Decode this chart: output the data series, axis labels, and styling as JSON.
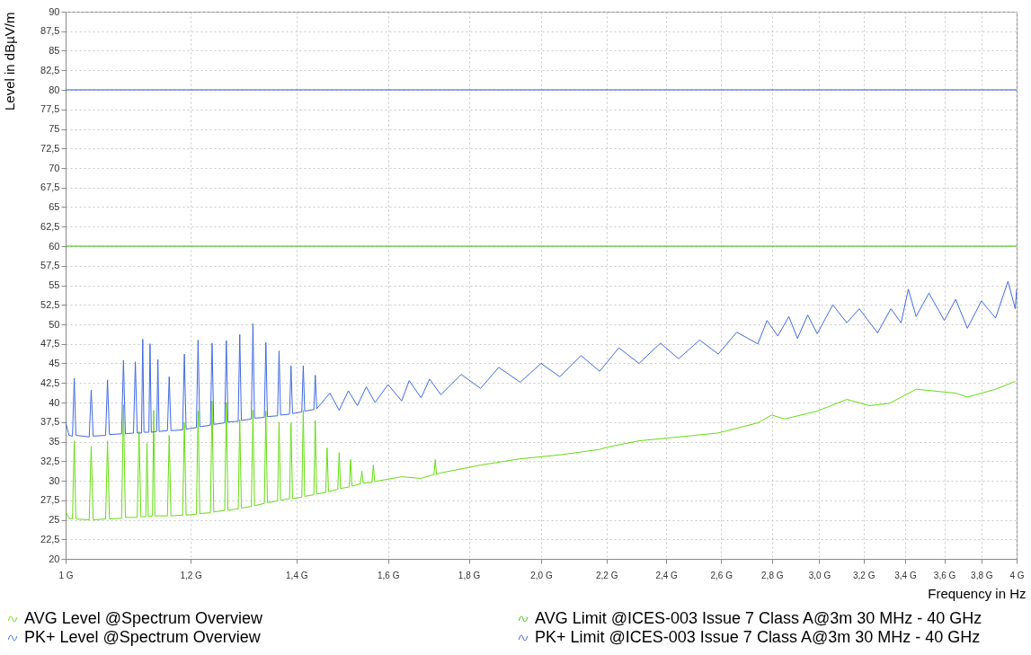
{
  "chart_data": {
    "type": "line",
    "xlabel": "Frequency in Hz",
    "ylabel": "Level in dBµV/m",
    "log": "x",
    "grid": true,
    "legend": "bottom",
    "line_style": "solid",
    "xlim": [
      1,
      4
    ],
    "xticks": [
      {
        "value": 1,
        "label": "1 G"
      },
      {
        "value": 1.2,
        "label": "1,2 G"
      },
      {
        "value": 1.4,
        "label": "1,4 G"
      },
      {
        "value": 1.6,
        "label": "1,6 G"
      },
      {
        "value": 1.8,
        "label": "1,8 G"
      },
      {
        "value": 2.0,
        "label": "2,0 G"
      },
      {
        "value": 2.2,
        "label": "2,2 G"
      },
      {
        "value": 2.4,
        "label": "2,4 G"
      },
      {
        "value": 2.6,
        "label": "2,6 G"
      },
      {
        "value": 2.8,
        "label": "2,8 G"
      },
      {
        "value": 3.0,
        "label": "3,0 G"
      },
      {
        "value": 3.2,
        "label": "3,2 G"
      },
      {
        "value": 3.4,
        "label": "3,4 G"
      },
      {
        "value": 3.6,
        "label": "3,6 G"
      },
      {
        "value": 3.8,
        "label": "3,8 G"
      },
      {
        "value": 4,
        "label": "4 G"
      }
    ],
    "ylim": [
      20,
      90
    ],
    "yticks": [
      20,
      {
        "value": 22.5,
        "label": "22,5"
      },
      25,
      {
        "value": 27.5,
        "label": "27,5"
      },
      30,
      {
        "value": 32.5,
        "label": "32,5"
      },
      35,
      {
        "value": 37.5,
        "label": "37,5"
      },
      40,
      {
        "value": 42.5,
        "label": "42,5"
      },
      45,
      {
        "value": 47.5,
        "label": "47,5"
      },
      50,
      {
        "value": 52.5,
        "label": "52,5"
      },
      55,
      {
        "value": 57.5,
        "label": "57,5"
      },
      60,
      {
        "value": 62.5,
        "label": "62,5"
      },
      65,
      {
        "value": 67.5,
        "label": "67,5"
      },
      70,
      {
        "value": 72.5,
        "label": "72,5"
      },
      75,
      {
        "value": 77.5,
        "label": "77,5"
      },
      80,
      {
        "value": 82.5,
        "label": "82,5"
      },
      85,
      {
        "value": 87.5,
        "label": "87,5"
      },
      90
    ],
    "series": [
      {
        "name": "AVG Level @Spectrum Overview",
        "color": "#66dd11",
        "x": [
          1.0,
          1.005,
          1.01,
          1.0127,
          1.015,
          1.035,
          1.038,
          1.041,
          1.06,
          1.063,
          1.066,
          1.085,
          1.088,
          1.091,
          1.11,
          1.113,
          1.116,
          1.124,
          1.126,
          1.128,
          1.135,
          1.137,
          1.139,
          1.16,
          1.163,
          1.166,
          1.186,
          1.189,
          1.192,
          1.21,
          1.213,
          1.216,
          1.235,
          1.238,
          1.241,
          1.261,
          1.264,
          1.267,
          1.286,
          1.289,
          1.292,
          1.311,
          1.314,
          1.317,
          1.336,
          1.339,
          1.342,
          1.362,
          1.365,
          1.368,
          1.386,
          1.389,
          1.392,
          1.411,
          1.414,
          1.417,
          1.436,
          1.439,
          1.442,
          1.461,
          1.464,
          1.467,
          1.487,
          1.49,
          1.493,
          1.512,
          1.515,
          1.518,
          1.537,
          1.54,
          1.543,
          1.563,
          1.566,
          1.569,
          1.632,
          1.679,
          1.711,
          1.714,
          1.717,
          1.728,
          1.831,
          1.94,
          2.055,
          2.178,
          2.203,
          2.307,
          2.444,
          2.589,
          2.743,
          2.799,
          2.853,
          2.991,
          3.123,
          3.227,
          3.324,
          3.455,
          3.66,
          3.723,
          3.879,
          3.992
        ],
        "values": [
          26.0,
          25.2,
          25.1,
          35.1,
          25.1,
          25.0,
          34.4,
          25.0,
          25.1,
          35.1,
          25.1,
          25.2,
          39.7,
          25.3,
          25.3,
          36.3,
          25.4,
          25.4,
          34.8,
          25.4,
          25.5,
          39.0,
          25.5,
          25.5,
          35.8,
          25.5,
          25.6,
          37.4,
          25.6,
          25.7,
          38.9,
          25.8,
          25.9,
          40.2,
          26.0,
          26.2,
          40.0,
          26.2,
          26.4,
          37.8,
          26.5,
          26.7,
          39.0,
          26.8,
          27.1,
          38.9,
          27.2,
          27.4,
          37.5,
          27.5,
          27.7,
          37.4,
          27.7,
          27.9,
          39.0,
          28.0,
          28.2,
          37.7,
          28.3,
          28.5,
          34.2,
          28.6,
          28.9,
          33.6,
          29.0,
          29.2,
          32.7,
          29.3,
          29.6,
          31.2,
          29.7,
          29.8,
          32.0,
          29.9,
          30.5,
          30.3,
          30.8,
          32.7,
          30.8,
          31.0,
          32.0,
          32.8,
          33.3,
          34.0,
          34.3,
          35.1,
          35.6,
          36.1,
          37.4,
          38.4,
          37.9,
          38.9,
          40.4,
          39.6,
          39.9,
          41.7,
          41.2,
          40.7,
          41.7,
          42.7
        ]
      },
      {
        "name": "PK+ Level @Spectrum Overview",
        "color": "#4169e1",
        "x": [
          1.0,
          1.005,
          1.01,
          1.0127,
          1.015,
          1.035,
          1.038,
          1.041,
          1.06,
          1.063,
          1.066,
          1.085,
          1.088,
          1.091,
          1.104,
          1.107,
          1.11,
          1.117,
          1.119,
          1.121,
          1.129,
          1.131,
          1.133,
          1.142,
          1.144,
          1.146,
          1.16,
          1.163,
          1.166,
          1.186,
          1.189,
          1.192,
          1.21,
          1.213,
          1.216,
          1.235,
          1.238,
          1.241,
          1.261,
          1.264,
          1.267,
          1.286,
          1.289,
          1.292,
          1.311,
          1.314,
          1.317,
          1.336,
          1.339,
          1.342,
          1.362,
          1.365,
          1.368,
          1.386,
          1.389,
          1.392,
          1.411,
          1.414,
          1.417,
          1.436,
          1.439,
          1.442,
          1.47,
          1.49,
          1.51,
          1.53,
          1.55,
          1.57,
          1.6,
          1.632,
          1.65,
          1.679,
          1.7,
          1.728,
          1.78,
          1.831,
          1.88,
          1.94,
          2.0,
          2.055,
          2.12,
          2.178,
          2.24,
          2.307,
          2.38,
          2.444,
          2.52,
          2.589,
          2.66,
          2.743,
          2.78,
          2.824,
          2.87,
          2.906,
          2.95,
          2.991,
          3.06,
          3.123,
          3.18,
          3.266,
          3.33,
          3.38,
          3.416,
          3.455,
          3.52,
          3.6,
          3.66,
          3.723,
          3.8,
          3.879,
          3.95,
          3.992,
          4.0
        ],
        "values": [
          37.5,
          35.8,
          35.7,
          43.1,
          35.8,
          35.6,
          41.6,
          35.7,
          35.8,
          42.9,
          35.9,
          36.0,
          45.4,
          36.0,
          36.1,
          45.2,
          36.1,
          36.1,
          48.1,
          36.2,
          36.2,
          47.5,
          36.2,
          36.3,
          45.5,
          36.3,
          36.4,
          43.3,
          36.4,
          36.5,
          46.2,
          36.6,
          36.8,
          48.0,
          36.9,
          37.1,
          47.6,
          37.2,
          37.4,
          47.9,
          37.5,
          37.6,
          48.7,
          37.7,
          37.9,
          50.1,
          38.0,
          38.1,
          47.7,
          38.2,
          38.3,
          46.6,
          38.4,
          38.5,
          44.7,
          38.6,
          38.8,
          44.7,
          38.9,
          39.1,
          43.5,
          39.2,
          41.2,
          39.0,
          41.5,
          39.6,
          42.0,
          40.0,
          42.3,
          40.2,
          42.8,
          40.6,
          43.0,
          41.0,
          43.6,
          41.8,
          44.5,
          42.6,
          45.0,
          43.3,
          46.0,
          44.0,
          47.0,
          45.0,
          47.6,
          45.6,
          48.0,
          46.2,
          49.0,
          47.5,
          50.5,
          48.5,
          51.0,
          48.2,
          51.2,
          48.8,
          52.5,
          50.2,
          52.0,
          48.9,
          52.0,
          50.2,
          54.5,
          51.0,
          54.0,
          50.5,
          53.2,
          49.5,
          53.0,
          50.8,
          55.5,
          52.0,
          54.5
        ]
      },
      {
        "name": "AVG Limit @ICES-003 Issue 7 Class A@3m 30 MHz - 40 GHz",
        "color": "#33bb00",
        "x": [
          1,
          4
        ],
        "values": [
          60,
          60
        ]
      },
      {
        "name": "PK+ Limit @ICES-003 Issue 7 Class A@3m 30 MHz - 40 GHz",
        "color": "#3355dd",
        "x": [
          1,
          4
        ],
        "values": [
          80,
          80
        ]
      }
    ]
  }
}
